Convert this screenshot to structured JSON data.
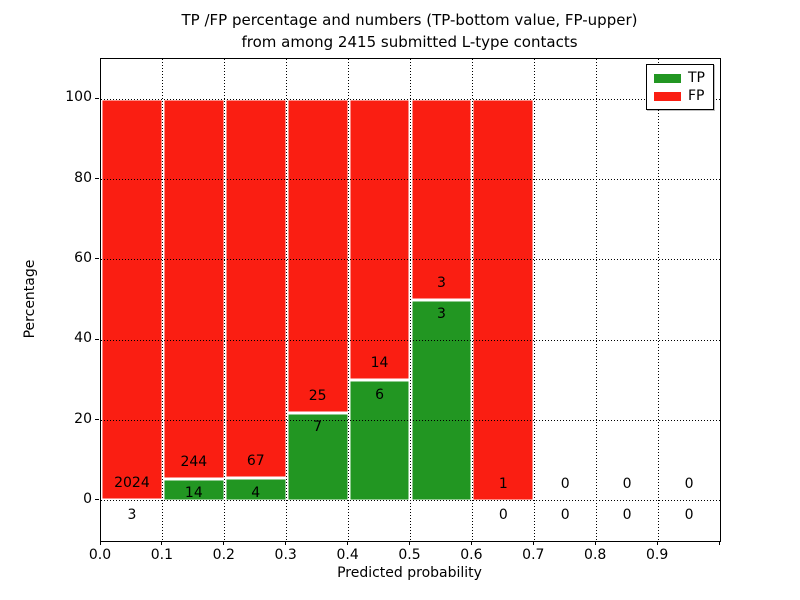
{
  "figure": {
    "title_line1": "TP /FP percentage and numbers (TP-bottom value, FP-upper)",
    "title_line2": "from among 2415 submitted L-type contacts"
  },
  "axes": {
    "xlabel": "Predicted probability",
    "ylabel": "Percentage",
    "x_tick_labels": [
      "0.0",
      "0.1",
      "0.2",
      "0.3",
      "0.4",
      "0.5",
      "0.6",
      "0.7",
      "0.8",
      "0.9"
    ],
    "x_tick_values": [
      0.0,
      0.1,
      0.2,
      0.3,
      0.4,
      0.5,
      0.6,
      0.7,
      0.8,
      0.9
    ],
    "y_tick_labels": [
      "0",
      "20",
      "40",
      "60",
      "80",
      "100"
    ],
    "y_tick_values": [
      0,
      20,
      40,
      60,
      80,
      100
    ],
    "xlim": [
      0.0,
      1.0
    ],
    "ylim": [
      -10,
      110
    ],
    "grid_style": "dotted"
  },
  "legend": {
    "position": "upper right",
    "entries": [
      {
        "label": "TP",
        "color": "#229622"
      },
      {
        "label": "FP",
        "color": "#fa1e12"
      }
    ]
  },
  "chart_data": {
    "type": "bar",
    "stacked": true,
    "title": "TP /FP percentage and numbers (TP-bottom value, FP-upper) from among 2415 submitted L-type contacts",
    "xlabel": "Predicted probability",
    "ylabel": "Percentage",
    "total_contacts": 2415,
    "bin_edges": [
      0.0,
      0.1,
      0.2,
      0.3,
      0.4,
      0.5,
      0.6,
      0.7,
      0.8,
      0.9,
      1.0
    ],
    "categories": [
      "0.0-0.1",
      "0.1-0.2",
      "0.2-0.3",
      "0.3-0.4",
      "0.4-0.5",
      "0.5-0.6",
      "0.6-0.7",
      "0.7-0.8",
      "0.8-0.9",
      "0.9-1.0"
    ],
    "series": [
      {
        "name": "TP",
        "color": "#229622",
        "counts": [
          3,
          14,
          4,
          7,
          6,
          3,
          0,
          0,
          0,
          0
        ],
        "percent": [
          0.15,
          5.43,
          5.63,
          21.88,
          30.0,
          50.0,
          0,
          0,
          0,
          0
        ]
      },
      {
        "name": "FP",
        "color": "#fa1e12",
        "counts": [
          2024,
          244,
          67,
          25,
          14,
          3,
          1,
          0,
          0,
          0
        ],
        "percent": [
          99.85,
          94.57,
          94.37,
          78.12,
          70.0,
          50.0,
          100,
          0,
          0,
          0
        ]
      }
    ],
    "bar_total_percent": [
      100,
      100,
      100,
      100,
      100,
      100,
      100,
      0,
      0,
      0
    ],
    "ylim": [
      -10,
      110
    ],
    "grid": true,
    "legend_position": "upper right"
  }
}
